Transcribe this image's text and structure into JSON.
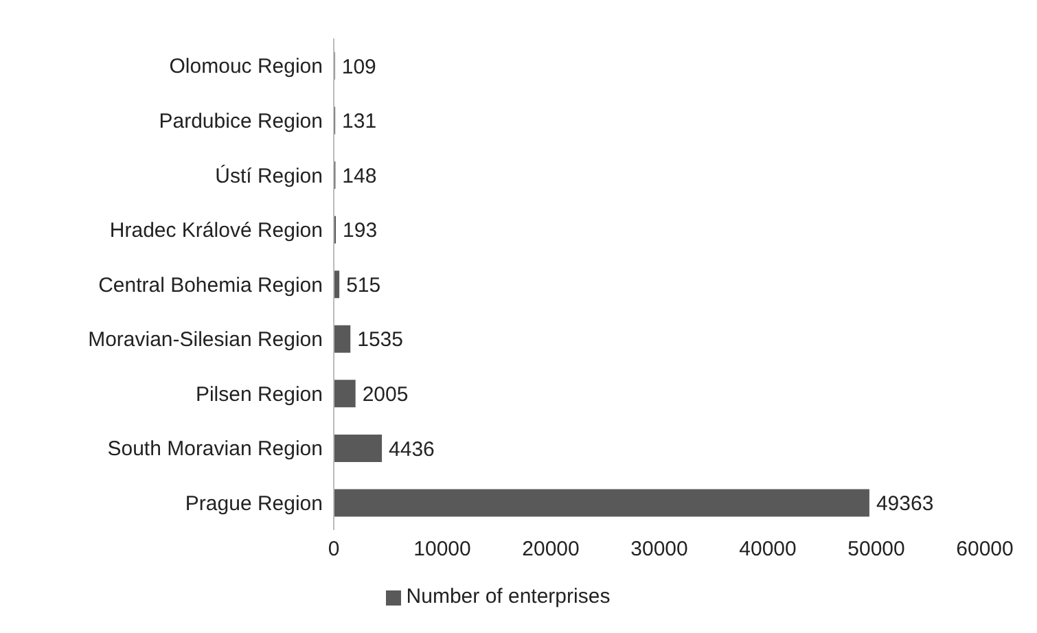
{
  "chart_data": {
    "type": "bar",
    "orientation": "horizontal",
    "categories": [
      "Olomouc Region",
      "Pardubice Region",
      "Ústí Region",
      "Hradec Králové Region",
      "Central Bohemia Region",
      "Moravian-Silesian Region",
      "Pilsen Region",
      "South Moravian Region",
      "Prague Region"
    ],
    "series": [
      {
        "name": "Number of enterprises",
        "color": "#595959",
        "values": [
          109,
          131,
          148,
          193,
          515,
          1535,
          2005,
          4436,
          49363
        ]
      }
    ],
    "xlim": [
      0,
      60000
    ],
    "xticks": [
      0,
      10000,
      20000,
      30000,
      40000,
      50000,
      60000
    ],
    "data_labels": true,
    "legend": "bottom",
    "grid": false
  }
}
